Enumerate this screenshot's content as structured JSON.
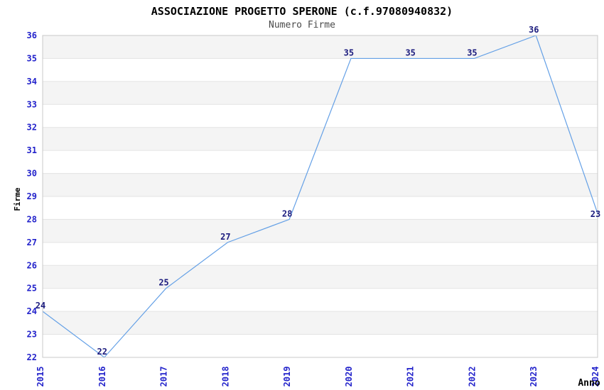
{
  "header": {
    "title": "ASSOCIAZIONE PROGETTO SPERONE (c.f.97080940832)",
    "subtitle": "Numero Firme"
  },
  "chart_data": {
    "type": "line",
    "title": "ASSOCIAZIONE PROGETTO SPERONE (c.f.97080940832)",
    "subtitle": "Numero Firme",
    "xlabel": "Anno",
    "ylabel": "Firme",
    "x": [
      "2015",
      "2016",
      "2017",
      "2018",
      "2019",
      "2020",
      "2021",
      "2022",
      "2023",
      "2024"
    ],
    "series": [
      {
        "name": "Numero Firme",
        "values": [
          24,
          22,
          25,
          27,
          28,
          35,
          35,
          35,
          36,
          23
        ]
      }
    ],
    "point_labels": [
      "24",
      "22",
      "25",
      "27",
      "28",
      "35",
      "35",
      "35",
      "36",
      "23"
    ],
    "ylim": [
      22,
      36
    ],
    "yticks": [
      22,
      23,
      24,
      25,
      26,
      27,
      28,
      29,
      30,
      31,
      32,
      33,
      34,
      35,
      36
    ],
    "grid": "horizontal alternating bands",
    "legend_position": "none",
    "colors": {
      "background": "#FFFFFF",
      "line": "#64A0E6",
      "tick_labels": "#2323CB",
      "point_labels": "#1C1C7E",
      "band": "#F4F4F4",
      "gridline": "#E3E3E3",
      "plot_border": "#C8C8C8",
      "title": "#000000",
      "subtitle": "#4A4A4A",
      "axis_titles": "#000000"
    }
  }
}
